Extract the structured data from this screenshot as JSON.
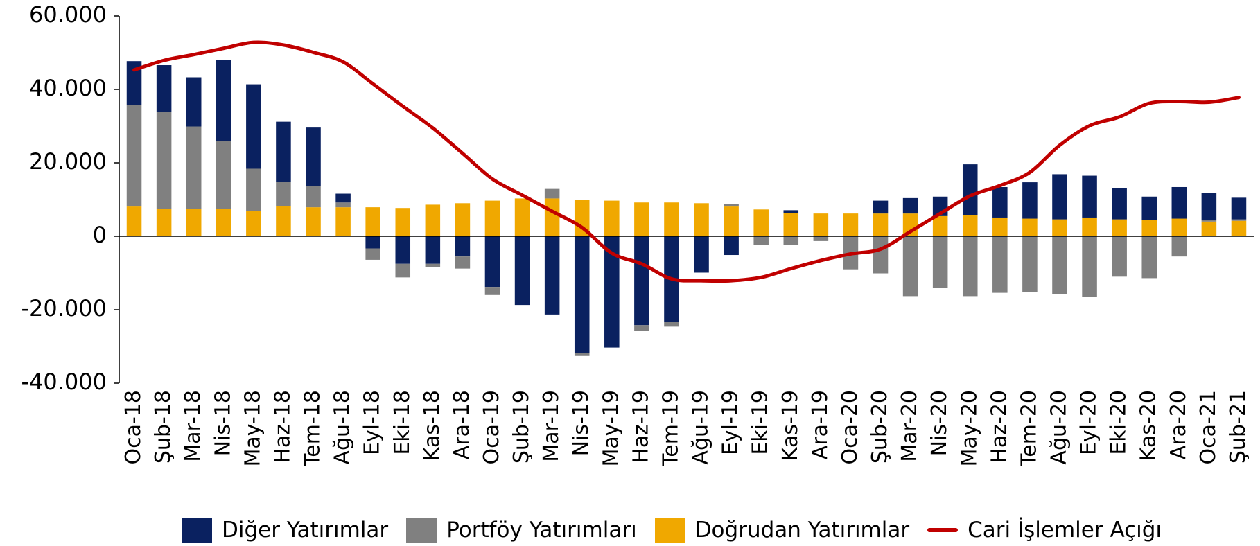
{
  "chart_data": {
    "type": "bar",
    "categories": [
      "Oca-18",
      "Şub-18",
      "Mar-18",
      "Nis-18",
      "May-18",
      "Haz-18",
      "Tem-18",
      "Ağu-18",
      "Eyl-18",
      "Eki-18",
      "Kas-18",
      "Ara-18",
      "Oca-19",
      "Şub-19",
      "Mar-19",
      "Nis-19",
      "May-19",
      "Haz-19",
      "Tem-19",
      "Ağu-19",
      "Eyl-19",
      "Eki-19",
      "Kas-19",
      "Ara-19",
      "Oca-20",
      "Şub-20",
      "Mar-20",
      "Nis-20",
      "May-20",
      "Haz-20",
      "Tem-20",
      "Ağu-20",
      "Eyl-20",
      "Eki-20",
      "Kas-20",
      "Ara-20",
      "Oca-21",
      "Şub-21"
    ],
    "series": [
      {
        "name": "Diğer Yatırımlar",
        "color": "#0a2160",
        "values": [
          11900,
          12700,
          13400,
          22000,
          23000,
          16300,
          16000,
          2400,
          -3300,
          -7500,
          -7500,
          -5500,
          -13800,
          -18700,
          -21300,
          -31700,
          -30300,
          -24200,
          -23300,
          -9900,
          -5100,
          0,
          700,
          0,
          0,
          3500,
          4200,
          5300,
          13900,
          8300,
          9900,
          12300,
          11400,
          8600,
          6400,
          8600,
          7300,
          5900
        ]
      },
      {
        "name": "Portföy Yatırımları",
        "color": "#808080",
        "values": [
          27700,
          26400,
          22400,
          18500,
          11600,
          6600,
          5700,
          1300,
          -3100,
          -3700,
          -900,
          -3300,
          -2200,
          0,
          2600,
          -900,
          0,
          -1500,
          -1300,
          0,
          700,
          -2400,
          -2400,
          -1300,
          -9000,
          -10100,
          -16300,
          -14100,
          -16300,
          -15400,
          -15200,
          -15800,
          -16500,
          -11000,
          -11400,
          -5500,
          400,
          400
        ]
      },
      {
        "name": "Doğrudan Yatırımlar",
        "color": "#f0a800",
        "values": [
          8100,
          7500,
          7500,
          7500,
          6800,
          8300,
          7900,
          7900,
          7900,
          7700,
          8600,
          9000,
          9700,
          10300,
          10300,
          9900,
          9700,
          9200,
          9200,
          9000,
          8100,
          7300,
          6400,
          6200,
          6200,
          6200,
          6200,
          5500,
          5700,
          5100,
          4800,
          4600,
          5100,
          4600,
          4400,
          4800,
          4000,
          4200
        ]
      },
      {
        "name": "Cari İşlemler Açığı",
        "color": "#c00000",
        "type": "line",
        "values": [
          45300,
          47900,
          49500,
          51200,
          52800,
          52100,
          50100,
          47500,
          41500,
          35400,
          29500,
          22600,
          15600,
          11200,
          6800,
          2400,
          -4600,
          -7500,
          -11600,
          -12100,
          -12100,
          -11200,
          -8800,
          -6600,
          -4800,
          -3500,
          1300,
          6200,
          11000,
          13800,
          17400,
          24800,
          30100,
          32500,
          36200,
          36700,
          36500,
          37800
        ]
      }
    ],
    "stacked": true,
    "ylim": [
      -40000,
      60000
    ],
    "yticks": [
      {
        "value": -40000,
        "label": "-40.000"
      },
      {
        "value": -20000,
        "label": "-20.000"
      },
      0,
      {
        "value": 20000,
        "label": "20.000"
      },
      {
        "value": 40000,
        "label": "40.000"
      },
      {
        "value": 60000,
        "label": "60.000"
      }
    ]
  }
}
